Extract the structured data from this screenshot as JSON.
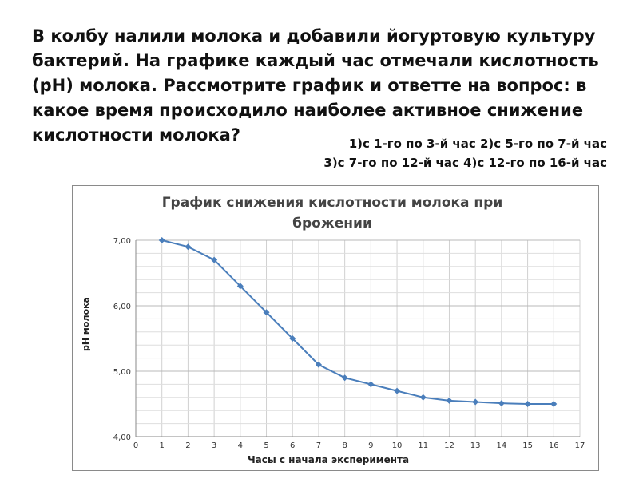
{
  "question": "В колбу налили молока и добавили йогуртовую культуру бактерий. На графике каждый час отмечали кислотность (рН) молока. Рассмотрите график и ответте на вопрос: в какое время происходило наиболее активное снижение кислотности молока?",
  "answers": {
    "line1": "1)с 1-го по 3-й час 2)с 5-го по 7-й час",
    "line2": "3)с 7-го по 12-й час 4)с 12-го по 16-й час"
  },
  "chart_data": {
    "type": "line",
    "title": "График снижения кислотности молока при брожении",
    "xlabel": "Часы с начала эксперимента",
    "ylabel": "рН молока",
    "xlim": [
      0,
      17
    ],
    "ylim": [
      4,
      7
    ],
    "x_ticks": [
      "0",
      "1",
      "2",
      "3",
      "4",
      "5",
      "6",
      "7",
      "8",
      "9",
      "10",
      "11",
      "12",
      "13",
      "14",
      "15",
      "16",
      "17"
    ],
    "y_ticks": [
      "4,00",
      "5,00",
      "6,00",
      "7,00"
    ],
    "grid": true,
    "line_color": "#4a7ebb",
    "series": [
      {
        "x": [
          1,
          2,
          3,
          4,
          5,
          6,
          7,
          8,
          9,
          10,
          11,
          12,
          13,
          14,
          15,
          16
        ],
        "y": [
          7.0,
          6.9,
          6.7,
          6.3,
          5.9,
          5.5,
          5.1,
          4.9,
          4.8,
          4.7,
          4.6,
          4.55,
          4.53,
          4.51,
          4.5,
          4.5
        ]
      }
    ]
  }
}
